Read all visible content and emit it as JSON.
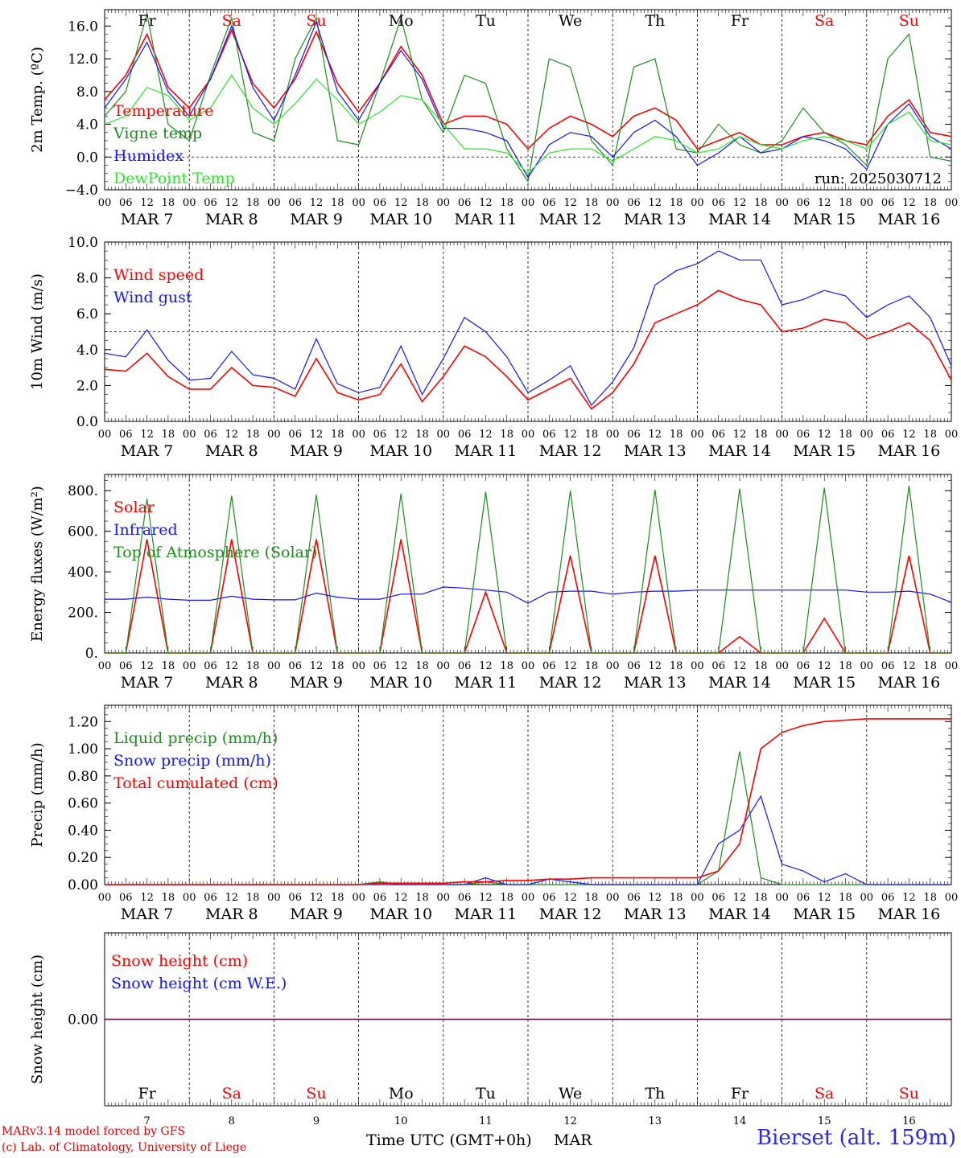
{
  "run_label": "run: 2025030712",
  "day_names": [
    "Fr",
    "Sa",
    "Su",
    "Mo",
    "Tu",
    "We",
    "Th",
    "Fr",
    "Sa",
    "Su"
  ],
  "weekend": [
    false,
    true,
    true,
    false,
    false,
    false,
    false,
    false,
    true,
    true
  ],
  "date_labels": [
    "MAR  7",
    "MAR  8",
    "MAR  9",
    "MAR 10",
    "MAR 11",
    "MAR 12",
    "MAR 13",
    "MAR 14",
    "MAR 15",
    "MAR 16"
  ],
  "day_numbers": [
    "7",
    "8",
    "9",
    "10",
    "11",
    "12",
    "13",
    "14",
    "15",
    "16"
  ],
  "hour_labels": [
    "00",
    "06",
    "12",
    "18"
  ],
  "xlabel": "Time UTC (GMT+0h)",
  "month": "MAR",
  "credits": [
    "MARv3.14 model forced by GFS",
    "(c) Lab. of Climatology, University of Liege"
  ],
  "station": "Bierset (alt. 159m)",
  "colors": {
    "red": "#ff0000",
    "green": "#1f8c1f",
    "blue": "#1414ff",
    "lightgreen": "#28e828"
  },
  "chart_data": [
    {
      "type": "line",
      "ylabel": "2m Temp. (ºC)",
      "ylim": [
        -4,
        18
      ],
      "ticks": [
        "−4.0",
        "0.0",
        "4.0",
        "8.0",
        "12.0",
        "16.0"
      ],
      "tick_values": [
        -4,
        0,
        4,
        8,
        12,
        16
      ],
      "ref_line": 0,
      "x": [
        0,
        6,
        12,
        18,
        24,
        30,
        36,
        42,
        48,
        54,
        60,
        66,
        72,
        78,
        84,
        90,
        96,
        102,
        108,
        114,
        120,
        126,
        132,
        138,
        144,
        150,
        156,
        162,
        168,
        174,
        180,
        186,
        192,
        198,
        204,
        210,
        216,
        222,
        228,
        234,
        240
      ],
      "series": [
        {
          "name": "Temperature",
          "color": "red",
          "values": [
            7.0,
            10.0,
            15.0,
            8.5,
            6.0,
            9.5,
            15.5,
            9.0,
            6.0,
            9.5,
            15.3,
            9.0,
            5.5,
            9.0,
            13.5,
            10.0,
            4.0,
            5.0,
            5.0,
            4.0,
            1.0,
            3.5,
            5.0,
            4.0,
            2.5,
            5.0,
            6.0,
            4.5,
            1.0,
            2.0,
            3.0,
            1.5,
            1.5,
            2.5,
            3.0,
            2.0,
            1.5,
            5.0,
            7.0,
            3.0,
            2.5
          ]
        },
        {
          "name": "Vigne temp",
          "color": "green",
          "values": [
            5.0,
            8.0,
            17.5,
            4.0,
            2.0,
            10.0,
            17.0,
            3.0,
            2.0,
            12.0,
            17.0,
            2.0,
            1.5,
            9.0,
            17.0,
            7.0,
            3.0,
            10.0,
            9.0,
            1.0,
            -3.0,
            12.0,
            11.0,
            2.0,
            -1.0,
            11.0,
            12.0,
            1.0,
            0.5,
            4.0,
            1.5,
            0.5,
            2.0,
            6.0,
            3.0,
            1.5,
            -1.0,
            12.0,
            15.0,
            0.0,
            -0.5
          ]
        },
        {
          "name": "Humidex",
          "color": "blue",
          "values": [
            6.0,
            9.5,
            14.0,
            8.0,
            5.0,
            9.5,
            16.0,
            8.5,
            4.5,
            10.0,
            16.5,
            8.0,
            4.5,
            9.0,
            13.0,
            9.5,
            3.5,
            3.5,
            3.0,
            2.0,
            -2.5,
            1.5,
            3.0,
            2.5,
            0.0,
            3.0,
            4.5,
            2.5,
            -1.0,
            0.5,
            2.5,
            0.5,
            1.0,
            2.5,
            2.0,
            1.0,
            -1.5,
            4.0,
            6.5,
            2.5,
            1.0
          ]
        },
        {
          "name": "DewPoint Temp",
          "color": "lightgreen",
          "values": [
            4.0,
            5.0,
            8.5,
            7.5,
            4.5,
            6.0,
            10.0,
            6.0,
            4.0,
            6.5,
            9.5,
            7.0,
            4.0,
            5.5,
            7.5,
            7.0,
            4.0,
            1.0,
            1.0,
            0.5,
            -2.0,
            0.5,
            1.0,
            1.0,
            -0.5,
            1.0,
            2.5,
            2.0,
            0.5,
            1.0,
            2.5,
            1.5,
            1.0,
            2.0,
            2.5,
            2.0,
            1.0,
            4.0,
            5.5,
            2.0,
            1.5
          ]
        }
      ]
    },
    {
      "type": "line",
      "ylabel": "10m Wind (m/s)",
      "ylim": [
        0,
        10
      ],
      "ticks": [
        "0.0",
        "2.0",
        "4.0",
        "6.0",
        "8.0",
        "10.0"
      ],
      "tick_values": [
        0,
        2,
        4,
        6,
        8,
        10
      ],
      "ref_line": 5,
      "x": [
        0,
        6,
        12,
        18,
        24,
        30,
        36,
        42,
        48,
        54,
        60,
        66,
        72,
        78,
        84,
        90,
        96,
        102,
        108,
        114,
        120,
        126,
        132,
        138,
        144,
        150,
        156,
        162,
        168,
        174,
        180,
        186,
        192,
        198,
        204,
        210,
        216,
        222,
        228,
        234,
        240
      ],
      "series": [
        {
          "name": "Wind speed",
          "color": "red",
          "values": [
            2.9,
            2.8,
            3.8,
            2.5,
            1.8,
            1.8,
            3.0,
            2.0,
            1.9,
            1.4,
            3.5,
            1.6,
            1.2,
            1.5,
            3.2,
            1.1,
            2.5,
            4.2,
            3.6,
            2.5,
            1.2,
            1.8,
            2.4,
            0.7,
            1.6,
            3.2,
            5.5,
            6.0,
            6.5,
            7.3,
            6.8,
            6.5,
            5.0,
            5.2,
            5.7,
            5.5,
            4.6,
            5.0,
            5.5,
            4.5,
            2.3
          ]
        },
        {
          "name": "Wind gust",
          "color": "blue",
          "values": [
            3.8,
            3.6,
            5.1,
            3.4,
            2.3,
            2.4,
            3.9,
            2.6,
            2.4,
            1.8,
            4.6,
            2.1,
            1.6,
            1.9,
            4.2,
            1.5,
            3.5,
            5.8,
            5.0,
            3.6,
            1.6,
            2.3,
            3.1,
            0.9,
            2.2,
            4.1,
            7.6,
            8.4,
            8.8,
            9.5,
            9.0,
            9.0,
            6.5,
            6.8,
            7.3,
            7.0,
            5.8,
            6.5,
            7.0,
            5.8,
            3.1
          ]
        }
      ]
    },
    {
      "type": "line",
      "ylabel": "Energy fluxes (W/m²)",
      "ylim": [
        0,
        880
      ],
      "ticks": [
        "0.",
        "200.",
        "400.",
        "600.",
        "800."
      ],
      "tick_values": [
        0,
        200,
        400,
        600,
        800
      ],
      "x": [
        0,
        6,
        12,
        18,
        24,
        30,
        36,
        42,
        48,
        54,
        60,
        66,
        72,
        78,
        84,
        90,
        96,
        102,
        108,
        114,
        120,
        126,
        132,
        138,
        144,
        150,
        156,
        162,
        168,
        174,
        180,
        186,
        192,
        198,
        204,
        210,
        216,
        222,
        228,
        234,
        240
      ],
      "series": [
        {
          "name": "Solar",
          "color": "red",
          "values": [
            0,
            0,
            560,
            0,
            0,
            0,
            560,
            0,
            0,
            0,
            560,
            0,
            0,
            0,
            560,
            0,
            0,
            0,
            300,
            0,
            0,
            0,
            480,
            0,
            0,
            0,
            480,
            0,
            0,
            0,
            80,
            0,
            0,
            0,
            170,
            0,
            0,
            0,
            480,
            0,
            0
          ]
        },
        {
          "name": "Infrared",
          "color": "blue",
          "values": [
            265,
            265,
            275,
            265,
            260,
            260,
            280,
            265,
            262,
            262,
            295,
            275,
            265,
            265,
            290,
            290,
            325,
            320,
            310,
            300,
            245,
            300,
            305,
            305,
            290,
            300,
            305,
            305,
            310,
            310,
            310,
            310,
            310,
            310,
            310,
            310,
            300,
            300,
            305,
            290,
            250
          ]
        },
        {
          "name": "Top of Atmosphere (Solar)",
          "color": "green",
          "values": [
            0,
            0,
            760,
            0,
            0,
            0,
            775,
            0,
            0,
            0,
            780,
            0,
            0,
            0,
            785,
            0,
            0,
            0,
            795,
            0,
            0,
            0,
            800,
            0,
            0,
            0,
            805,
            0,
            0,
            0,
            810,
            0,
            0,
            0,
            815,
            0,
            0,
            0,
            825,
            0,
            0
          ]
        }
      ]
    },
    {
      "type": "line",
      "ylabel": "Precip (mm/h)",
      "ylim": [
        0,
        1.32
      ],
      "ticks": [
        "0.00",
        "0.20",
        "0.40",
        "0.60",
        "0.80",
        "1.00",
        "1.20"
      ],
      "tick_values": [
        0,
        0.2,
        0.4,
        0.6,
        0.8,
        1.0,
        1.2
      ],
      "x": [
        0,
        6,
        12,
        18,
        24,
        30,
        36,
        42,
        48,
        54,
        60,
        66,
        72,
        78,
        84,
        90,
        96,
        102,
        108,
        114,
        120,
        126,
        132,
        138,
        144,
        150,
        156,
        162,
        168,
        174,
        180,
        186,
        192,
        198,
        204,
        210,
        216,
        222,
        228,
        234,
        240
      ],
      "series": [
        {
          "name": "Liquid precip (mm/h)",
          "color": "green",
          "values": [
            0,
            0,
            0,
            0,
            0,
            0,
            0,
            0,
            0,
            0,
            0,
            0,
            0,
            0.02,
            0,
            0,
            0,
            0,
            0.02,
            0,
            0,
            0,
            0,
            0,
            0,
            0,
            0,
            0,
            0,
            0.1,
            0.98,
            0.05,
            0,
            0,
            0,
            0,
            0,
            0,
            0,
            0,
            0
          ]
        },
        {
          "name": "Snow precip (mm/h)",
          "color": "blue",
          "values": [
            0,
            0,
            0,
            0,
            0,
            0,
            0,
            0,
            0,
            0,
            0,
            0,
            0,
            0,
            0,
            0,
            0,
            0,
            0.05,
            0,
            0,
            0.04,
            0.02,
            0,
            0,
            0,
            0,
            0,
            0,
            0.3,
            0.4,
            0.65,
            0.15,
            0.1,
            0.02,
            0.08,
            0,
            0,
            0,
            0,
            0
          ]
        },
        {
          "name": "Total cumulated (cm)",
          "color": "red",
          "values": [
            0,
            0,
            0,
            0,
            0,
            0,
            0,
            0,
            0,
            0,
            0,
            0,
            0,
            0.01,
            0.01,
            0.01,
            0.01,
            0.02,
            0.02,
            0.03,
            0.03,
            0.04,
            0.04,
            0.05,
            0.05,
            0.05,
            0.05,
            0.05,
            0.05,
            0.1,
            0.3,
            1.0,
            1.12,
            1.17,
            1.2,
            1.21,
            1.22,
            1.22,
            1.22,
            1.22,
            1.22
          ]
        }
      ]
    },
    {
      "type": "line",
      "ylabel": "Snow height (cm)",
      "ylim": [
        -1,
        1
      ],
      "ticks": [
        "0.00"
      ],
      "tick_values": [
        0
      ],
      "x": [
        0,
        240
      ],
      "series": [
        {
          "name": "Snow height (cm)",
          "color": "red",
          "values": [
            0,
            0
          ]
        },
        {
          "name": "Snow height (cm W.E.)",
          "color": "blue",
          "values": [
            0,
            0
          ]
        }
      ]
    }
  ]
}
